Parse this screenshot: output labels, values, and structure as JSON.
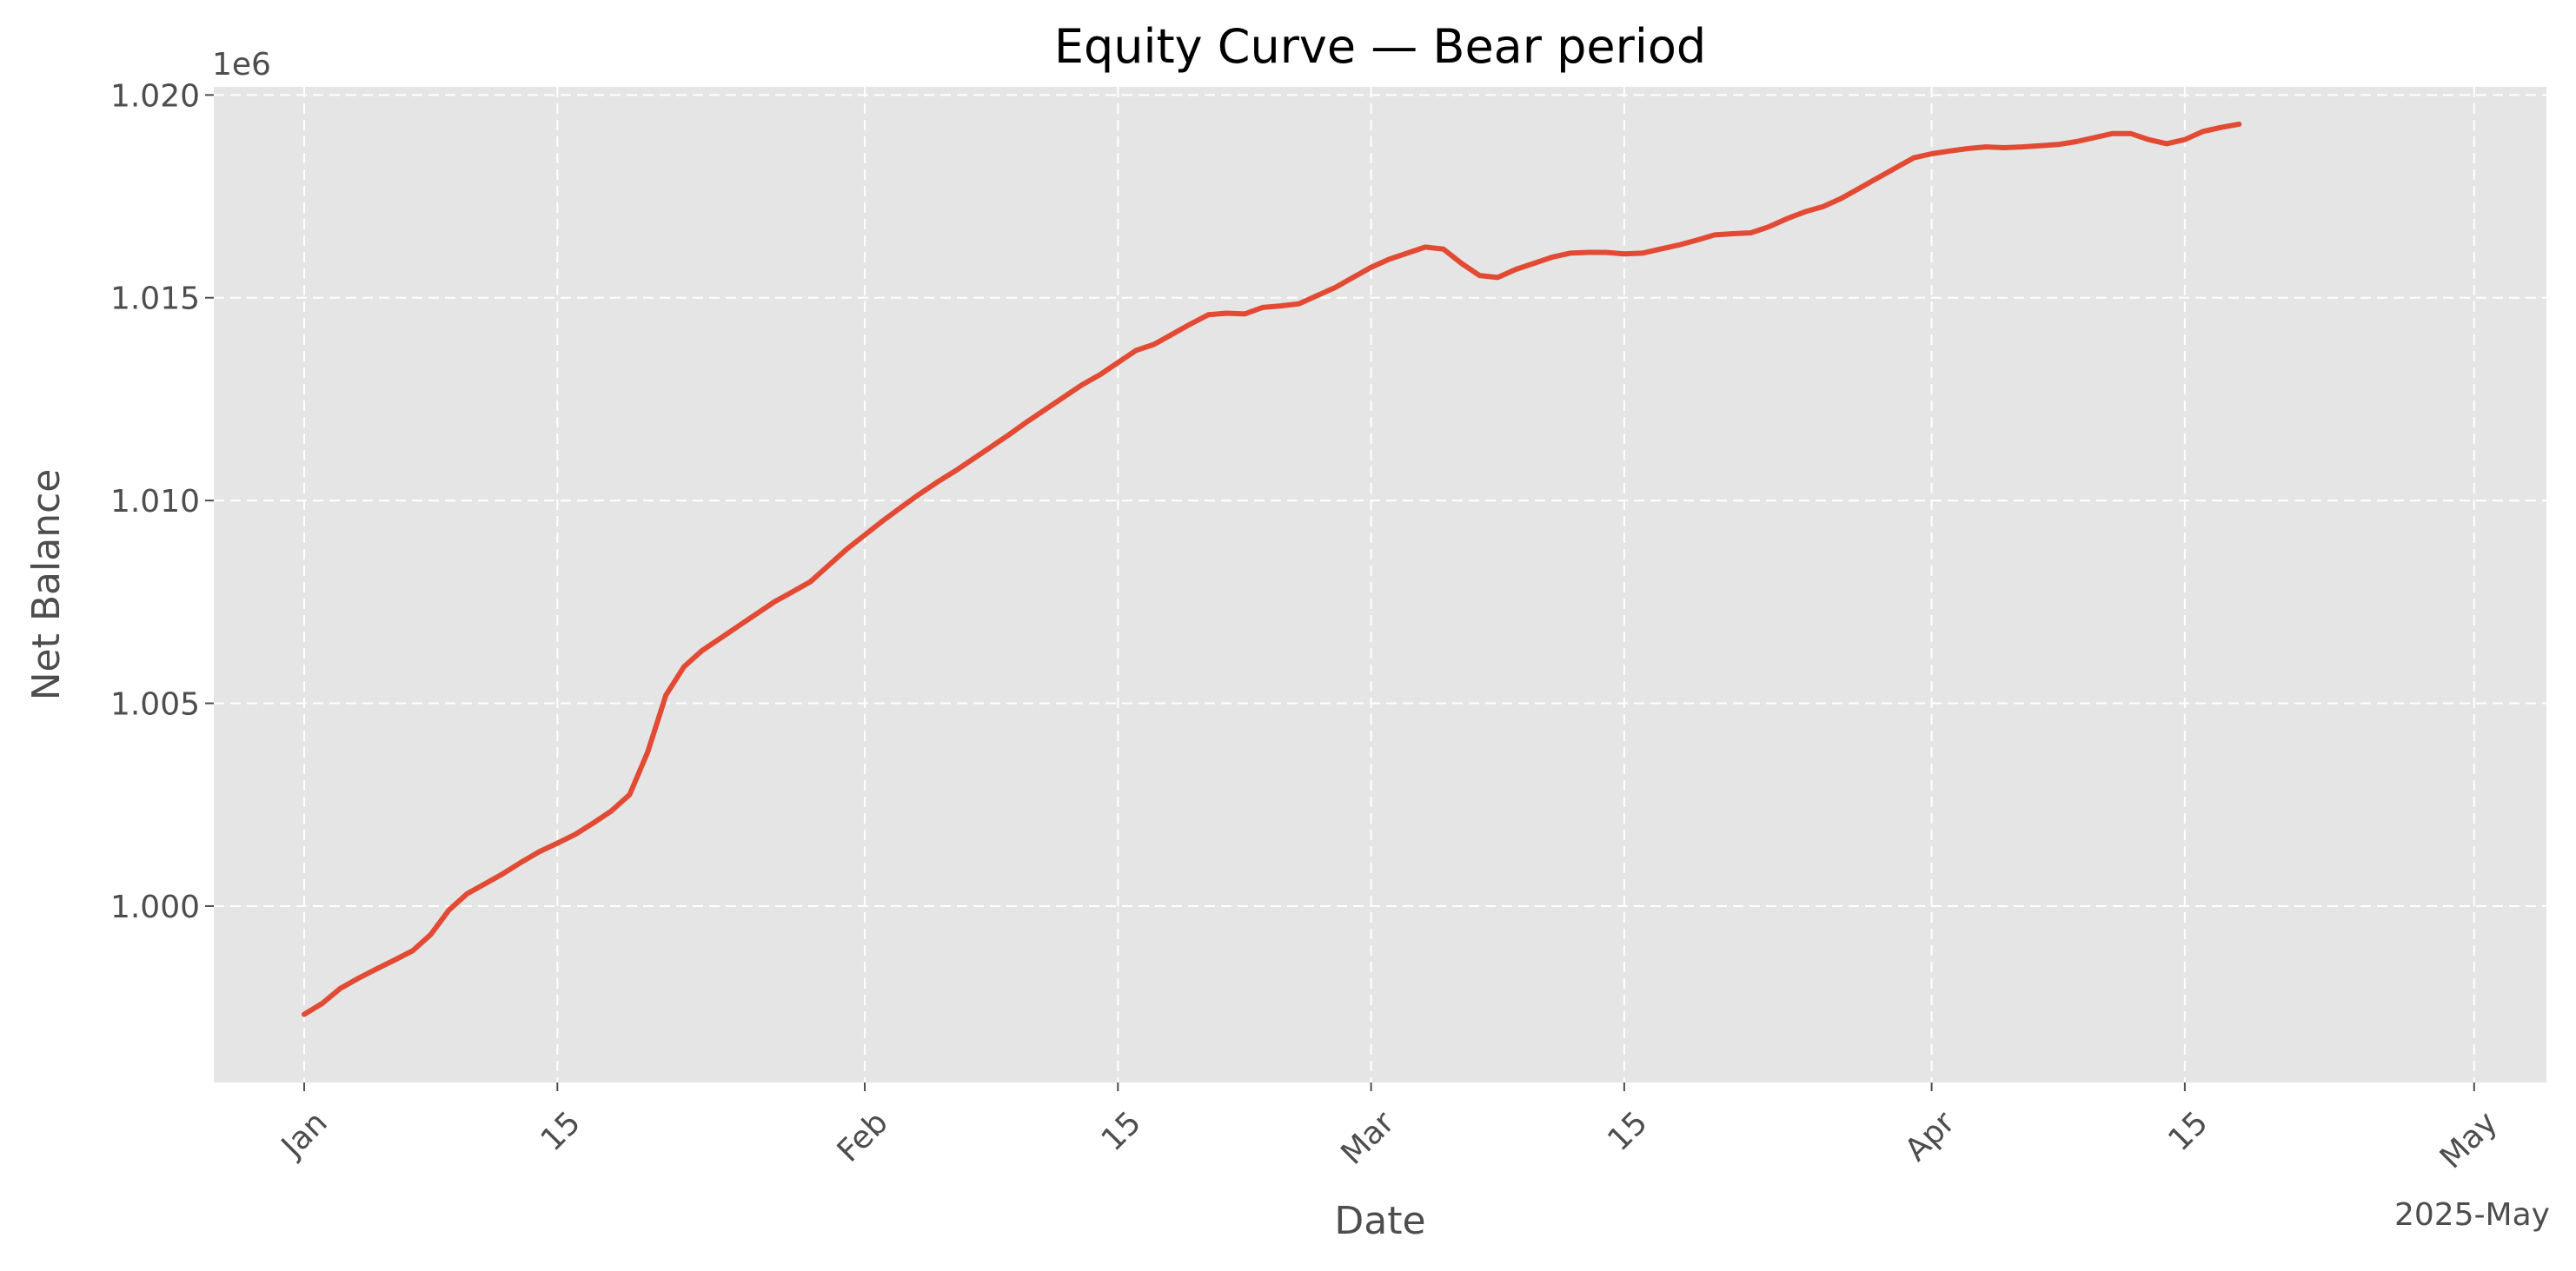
{
  "chart_data": {
    "type": "line",
    "title": "Equity Curve — Bear period",
    "xlabel": "Date",
    "ylabel": "Net Balance",
    "y_offset_label": "1e6",
    "x_offset_label": "2025-May",
    "x_range": [
      "2024-12-27",
      "2025-05-05"
    ],
    "ylim": [
      0.99565,
      1.0202
    ],
    "grid": true,
    "legend": "none",
    "line_color": "#E24A33",
    "background": "#E5E5E5",
    "x_ticks": [
      {
        "date": "2025-01-01",
        "label": "Jan"
      },
      {
        "date": "2025-01-15",
        "label": "15"
      },
      {
        "date": "2025-02-01",
        "label": "Feb"
      },
      {
        "date": "2025-02-15",
        "label": "15"
      },
      {
        "date": "2025-03-01",
        "label": "Mar"
      },
      {
        "date": "2025-03-15",
        "label": "15"
      },
      {
        "date": "2025-04-01",
        "label": "Apr"
      },
      {
        "date": "2025-04-15",
        "label": "15"
      },
      {
        "date": "2025-05-01",
        "label": "May"
      }
    ],
    "y_ticks": [
      {
        "value": 1.0,
        "label": "1.000"
      },
      {
        "value": 1.005,
        "label": "1.005"
      },
      {
        "value": 1.01,
        "label": "1.010"
      },
      {
        "value": 1.015,
        "label": "1.015"
      },
      {
        "value": 1.02,
        "label": "1.020"
      }
    ],
    "series": [
      {
        "points": [
          [
            "2025-01-01",
            0.99733
          ],
          [
            "2025-01-02",
            0.9976
          ],
          [
            "2025-01-03",
            0.99797
          ],
          [
            "2025-01-04",
            0.99822
          ],
          [
            "2025-01-05",
            0.99845
          ],
          [
            "2025-01-06",
            0.99867
          ],
          [
            "2025-01-07",
            0.9989
          ],
          [
            "2025-01-08",
            0.9993
          ],
          [
            "2025-01-09",
            0.9999
          ],
          [
            "2025-01-10",
            1.0003
          ],
          [
            "2025-01-11",
            1.00055
          ],
          [
            "2025-01-12",
            1.0008
          ],
          [
            "2025-01-13",
            1.00108
          ],
          [
            "2025-01-14",
            1.00134
          ],
          [
            "2025-01-15",
            1.00155
          ],
          [
            "2025-01-16",
            1.00177
          ],
          [
            "2025-01-17",
            1.00205
          ],
          [
            "2025-01-18",
            1.00235
          ],
          [
            "2025-01-19",
            1.00275
          ],
          [
            "2025-01-20",
            1.0038
          ],
          [
            "2025-01-21",
            1.0052
          ],
          [
            "2025-01-22",
            1.0059
          ],
          [
            "2025-01-23",
            1.0063
          ],
          [
            "2025-01-24",
            1.0066
          ],
          [
            "2025-01-25",
            1.0069
          ],
          [
            "2025-01-26",
            1.0072
          ],
          [
            "2025-01-27",
            1.0075
          ],
          [
            "2025-01-28",
            1.00775
          ],
          [
            "2025-01-29",
            1.008
          ],
          [
            "2025-01-30",
            1.0084
          ],
          [
            "2025-01-31",
            1.0088
          ],
          [
            "2025-02-01",
            1.00915
          ],
          [
            "2025-02-02",
            1.0095
          ],
          [
            "2025-02-03",
            1.00983
          ],
          [
            "2025-02-04",
            1.01015
          ],
          [
            "2025-02-05",
            1.01045
          ],
          [
            "2025-02-06",
            1.01073
          ],
          [
            "2025-02-07",
            1.01103
          ],
          [
            "2025-02-08",
            1.01133
          ],
          [
            "2025-02-09",
            1.01163
          ],
          [
            "2025-02-10",
            1.01195
          ],
          [
            "2025-02-11",
            1.01225
          ],
          [
            "2025-02-12",
            1.01255
          ],
          [
            "2025-02-13",
            1.01285
          ],
          [
            "2025-02-14",
            1.0131
          ],
          [
            "2025-02-15",
            1.0134
          ],
          [
            "2025-02-16",
            1.0137
          ],
          [
            "2025-02-17",
            1.01385
          ],
          [
            "2025-02-18",
            1.0141
          ],
          [
            "2025-02-19",
            1.01435
          ],
          [
            "2025-02-20",
            1.01458
          ],
          [
            "2025-02-21",
            1.01462
          ],
          [
            "2025-02-22",
            1.0146
          ],
          [
            "2025-02-23",
            1.01476
          ],
          [
            "2025-02-24",
            1.0148
          ],
          [
            "2025-02-25",
            1.01485
          ],
          [
            "2025-02-26",
            1.01505
          ],
          [
            "2025-02-27",
            1.01525
          ],
          [
            "2025-02-28",
            1.0155
          ],
          [
            "2025-03-01",
            1.01575
          ],
          [
            "2025-03-02",
            1.01595
          ],
          [
            "2025-03-03",
            1.0161
          ],
          [
            "2025-03-04",
            1.01625
          ],
          [
            "2025-03-05",
            1.0162
          ],
          [
            "2025-03-06",
            1.01585
          ],
          [
            "2025-03-07",
            1.01555
          ],
          [
            "2025-03-08",
            1.0155
          ],
          [
            "2025-03-09",
            1.0157
          ],
          [
            "2025-03-10",
            1.01585
          ],
          [
            "2025-03-11",
            1.016
          ],
          [
            "2025-03-12",
            1.0161
          ],
          [
            "2025-03-13",
            1.01612
          ],
          [
            "2025-03-14",
            1.01612
          ],
          [
            "2025-03-15",
            1.01608
          ],
          [
            "2025-03-16",
            1.0161
          ],
          [
            "2025-03-17",
            1.0162
          ],
          [
            "2025-03-18",
            1.0163
          ],
          [
            "2025-03-19",
            1.01642
          ],
          [
            "2025-03-20",
            1.01655
          ],
          [
            "2025-03-21",
            1.01658
          ],
          [
            "2025-03-22",
            1.0166
          ],
          [
            "2025-03-23",
            1.01675
          ],
          [
            "2025-03-24",
            1.01695
          ],
          [
            "2025-03-25",
            1.01712
          ],
          [
            "2025-03-26",
            1.01725
          ],
          [
            "2025-03-27",
            1.01745
          ],
          [
            "2025-03-28",
            1.0177
          ],
          [
            "2025-03-29",
            1.01795
          ],
          [
            "2025-03-30",
            1.0182
          ],
          [
            "2025-03-31",
            1.01845
          ],
          [
            "2025-04-01",
            1.01855
          ],
          [
            "2025-04-02",
            1.01862
          ],
          [
            "2025-04-03",
            1.01868
          ],
          [
            "2025-04-04",
            1.01872
          ],
          [
            "2025-04-05",
            1.0187
          ],
          [
            "2025-04-06",
            1.01872
          ],
          [
            "2025-04-07",
            1.01875
          ],
          [
            "2025-04-08",
            1.01878
          ],
          [
            "2025-04-09",
            1.01885
          ],
          [
            "2025-04-10",
            1.01895
          ],
          [
            "2025-04-11",
            1.01905
          ],
          [
            "2025-04-12",
            1.01905
          ],
          [
            "2025-04-13",
            1.0189
          ],
          [
            "2025-04-14",
            1.0188
          ],
          [
            "2025-04-15",
            1.0189
          ],
          [
            "2025-04-16",
            1.0191
          ],
          [
            "2025-04-17",
            1.0192
          ],
          [
            "2025-04-18",
            1.01928
          ]
        ]
      }
    ]
  }
}
